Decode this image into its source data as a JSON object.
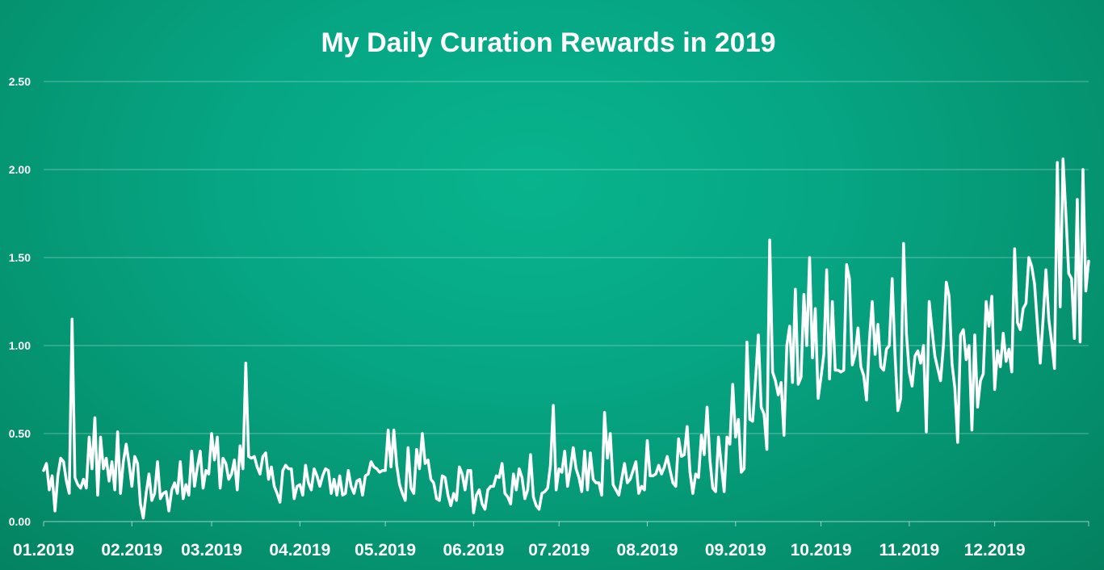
{
  "chart_data": {
    "type": "line",
    "title": "My Daily Curation Rewards in 2019",
    "xlabel": "",
    "ylabel": "",
    "ylim": [
      0,
      2.5
    ],
    "yticks": [
      "0.00",
      "0.50",
      "1.00",
      "1.50",
      "2.00",
      "2.50"
    ],
    "xticks": [
      "01.2019",
      "02.2019",
      "03.2019",
      "04.2019",
      "05.2019",
      "06.2019",
      "07.2019",
      "08.2019",
      "09.2019",
      "10.2019",
      "11.2019",
      "12.2019"
    ],
    "grid": true,
    "legend": "none",
    "series": [
      {
        "color": "#ffffff",
        "values": [
          0.29,
          0.33,
          0.18,
          0.26,
          0.06,
          0.26,
          0.36,
          0.34,
          0.23,
          0.16,
          1.15,
          0.25,
          0.21,
          0.19,
          0.24,
          0.19,
          0.48,
          0.3,
          0.59,
          0.15,
          0.48,
          0.3,
          0.36,
          0.23,
          0.34,
          0.18,
          0.51,
          0.16,
          0.34,
          0.44,
          0.33,
          0.2,
          0.37,
          0.33,
          0.1,
          0.02,
          0.16,
          0.27,
          0.12,
          0.16,
          0.34,
          0.13,
          0.16,
          0.17,
          0.06,
          0.18,
          0.22,
          0.16,
          0.34,
          0.13,
          0.21,
          0.15,
          0.4,
          0.2,
          0.31,
          0.4,
          0.19,
          0.29,
          0.27,
          0.5,
          0.35,
          0.48,
          0.19,
          0.36,
          0.33,
          0.24,
          0.27,
          0.35,
          0.18,
          0.43,
          0.3,
          0.9,
          0.37,
          0.36,
          0.37,
          0.31,
          0.27,
          0.37,
          0.39,
          0.24,
          0.31,
          0.2,
          0.16,
          0.11,
          0.29,
          0.32,
          0.3,
          0.3,
          0.13,
          0.2,
          0.21,
          0.15,
          0.32,
          0.22,
          0.18,
          0.3,
          0.26,
          0.2,
          0.26,
          0.3,
          0.29,
          0.16,
          0.24,
          0.15,
          0.26,
          0.15,
          0.16,
          0.29,
          0.2,
          0.16,
          0.23,
          0.24,
          0.15,
          0.26,
          0.27,
          0.34,
          0.31,
          0.3,
          0.28,
          0.29,
          0.29,
          0.52,
          0.31,
          0.52,
          0.32,
          0.21,
          0.16,
          0.12,
          0.42,
          0.19,
          0.16,
          0.41,
          0.3,
          0.5,
          0.33,
          0.35,
          0.24,
          0.22,
          0.13,
          0.12,
          0.26,
          0.25,
          0.15,
          0.09,
          0.16,
          0.12,
          0.31,
          0.27,
          0.18,
          0.29,
          0.29,
          0.05,
          0.15,
          0.18,
          0.1,
          0.07,
          0.18,
          0.2,
          0.2,
          0.26,
          0.25,
          0.33,
          0.16,
          0.14,
          0.1,
          0.27,
          0.18,
          0.3,
          0.25,
          0.13,
          0.18,
          0.38,
          0.14,
          0.09,
          0.07,
          0.16,
          0.17,
          0.19,
          0.32,
          0.66,
          0.18,
          0.3,
          0.28,
          0.4,
          0.2,
          0.3,
          0.42,
          0.3,
          0.25,
          0.17,
          0.4,
          0.18,
          0.39,
          0.24,
          0.22,
          0.22,
          0.15,
          0.62,
          0.36,
          0.5,
          0.21,
          0.18,
          0.15,
          0.24,
          0.33,
          0.22,
          0.24,
          0.29,
          0.34,
          0.16,
          0.2,
          0.18,
          0.46,
          0.26,
          0.26,
          0.27,
          0.32,
          0.27,
          0.31,
          0.37,
          0.29,
          0.22,
          0.2,
          0.47,
          0.37,
          0.38,
          0.54,
          0.28,
          0.16,
          0.27,
          0.25,
          0.49,
          0.38,
          0.65,
          0.35,
          0.19,
          0.17,
          0.48,
          0.32,
          0.17,
          0.48,
          0.44,
          0.78,
          0.48,
          0.58,
          0.28,
          0.3,
          1.02,
          0.58,
          0.57,
          0.8,
          1.06,
          0.65,
          0.61,
          0.41,
          1.6,
          0.85,
          0.8,
          0.72,
          0.79,
          0.49,
          1.0,
          1.11,
          0.79,
          1.32,
          0.78,
          0.82,
          1.29,
          1.0,
          1.5,
          0.93,
          1.21,
          0.7,
          0.82,
          0.95,
          1.43,
          0.81,
          1.25,
          0.86,
          0.86,
          0.85,
          0.86,
          1.46,
          1.38,
          0.89,
          0.95,
          1.1,
          0.88,
          0.83,
          0.69,
          1.03,
          1.25,
          0.95,
          1.12,
          0.88,
          0.86,
          0.98,
          1.0,
          1.38,
          0.95,
          0.63,
          0.7,
          1.58,
          1.07,
          0.85,
          0.77,
          0.94,
          0.97,
          0.9,
          1.0,
          0.51,
          1.25,
          1.09,
          0.94,
          0.87,
          0.8,
          1.0,
          1.36,
          1.28,
          0.9,
          0.76,
          0.45,
          1.06,
          1.09,
          0.92,
          1.0,
          0.52,
          1.06,
          0.65,
          0.8,
          0.84,
          1.25,
          1.11,
          1.28,
          0.75,
          0.97,
          0.88,
          1.07,
          0.91,
          0.98,
          0.85,
          1.55,
          1.13,
          1.09,
          1.21,
          1.24,
          1.5,
          1.45,
          1.35,
          1.12,
          0.9,
          1.15,
          1.43,
          1.15,
          1.02,
          0.87,
          2.04,
          1.22,
          2.06,
          1.75,
          1.41,
          1.38,
          1.04,
          1.83,
          1.02,
          2.0,
          1.31,
          1.48
        ]
      }
    ]
  }
}
